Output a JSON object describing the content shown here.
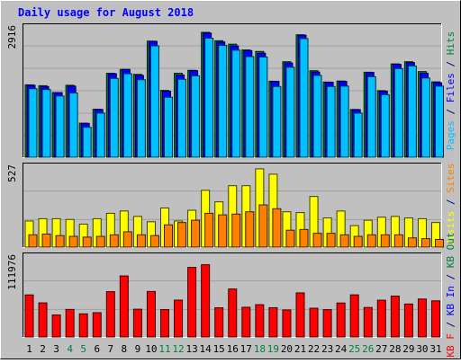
{
  "chart_data": [
    {
      "type": "bar",
      "title": "Daily usage for August 2018",
      "panel": "top",
      "y_max_label": "2916",
      "ylim": [
        0,
        2916
      ],
      "right_labels": [
        {
          "text": "Pages",
          "color": "#00c0ff"
        },
        {
          "text": " / ",
          "color": "#000080"
        },
        {
          "text": "Files",
          "color": "#0000ff"
        },
        {
          "text": " / ",
          "color": "#000080"
        },
        {
          "text": "Hits",
          "color": "#008040"
        }
      ],
      "categories": [
        "1",
        "2",
        "3",
        "4",
        "5",
        "6",
        "7",
        "8",
        "9",
        "10",
        "11",
        "12",
        "13",
        "14",
        "15",
        "16",
        "17",
        "18",
        "19",
        "20",
        "21",
        "22",
        "23",
        "24",
        "25",
        "26",
        "27",
        "28",
        "29",
        "30",
        "31"
      ],
      "series": [
        {
          "name": "Hits",
          "color": "#008040",
          "values": [
            1690,
            1670,
            1510,
            1680,
            795,
            1120,
            1960,
            2050,
            1935,
            2711,
            1560,
            1960,
            2030,
            2916,
            2720,
            2640,
            2505,
            2470,
            1775,
            2230,
            2860,
            2020,
            1755,
            1780,
            1116,
            1985,
            1555,
            2180,
            2230,
            2000,
            1760
          ]
        },
        {
          "name": "Files",
          "color": "#0000ff",
          "values": [
            1680,
            1650,
            1510,
            1660,
            790,
            1115,
            1950,
            2050,
            1910,
            2705,
            1540,
            1920,
            2020,
            2900,
            2690,
            2600,
            2490,
            2430,
            1770,
            2200,
            2850,
            1990,
            1750,
            1770,
            1110,
            1980,
            1540,
            2170,
            2210,
            1960,
            1740
          ]
        },
        {
          "name": "Pages",
          "color": "#00c0ff",
          "values": [
            1600,
            1580,
            1430,
            1500,
            700,
            1030,
            1840,
            1950,
            1810,
            2600,
            1400,
            1820,
            1900,
            2780,
            2610,
            2500,
            2350,
            2340,
            1650,
            2100,
            2770,
            1910,
            1650,
            1660,
            1030,
            1880,
            1460,
            2070,
            2130,
            1850,
            1660
          ]
        }
      ]
    },
    {
      "type": "bar",
      "panel": "middle",
      "y_max_label": "527",
      "ylim": [
        0,
        527
      ],
      "right_labels": [
        {
          "text": "Visits",
          "color": "#ffff00"
        },
        {
          "text": " / ",
          "color": "#000080"
        },
        {
          "text": "Sites",
          "color": "#ff8000"
        }
      ],
      "categories": [
        "1",
        "2",
        "3",
        "4",
        "5",
        "6",
        "7",
        "8",
        "9",
        "10",
        "11",
        "12",
        "13",
        "14",
        "15",
        "16",
        "17",
        "18",
        "19",
        "20",
        "21",
        "22",
        "23",
        "24",
        "25",
        "26",
        "27",
        "28",
        "29",
        "30",
        "31"
      ],
      "series": [
        {
          "name": "Visits",
          "color": "#ffff00",
          "values": [
            170,
            185,
            185,
            180,
            150,
            185,
            220,
            235,
            200,
            165,
            255,
            170,
            240,
            370,
            295,
            400,
            400,
            510,
            475,
            230,
            225,
            330,
            190,
            235,
            140,
            175,
            195,
            200,
            190,
            185,
            160
          ]
        },
        {
          "name": "Sites",
          "color": "#ff8000",
          "values": [
            80,
            85,
            75,
            70,
            65,
            70,
            80,
            100,
            80,
            75,
            145,
            160,
            175,
            220,
            210,
            215,
            230,
            275,
            250,
            110,
            115,
            90,
            90,
            80,
            70,
            80,
            80,
            80,
            60,
            55,
            50
          ]
        }
      ]
    },
    {
      "type": "bar",
      "panel": "bottom",
      "y_max_label": "111976",
      "ylim": [
        0,
        111976
      ],
      "right_labels": [
        {
          "text": "KB F",
          "color": "#ff0000"
        },
        {
          "text": " / ",
          "color": "#000080"
        },
        {
          "text": "KB In",
          "color": "#0000ff"
        },
        {
          "text": " / ",
          "color": "#000080"
        },
        {
          "text": "KB Out",
          "color": "#008040"
        }
      ],
      "x_labels": [
        {
          "text": "1",
          "color": "#000000"
        },
        {
          "text": "2",
          "color": "#000000"
        },
        {
          "text": "3",
          "color": "#000000"
        },
        {
          "text": "4",
          "color": "#008040"
        },
        {
          "text": "5",
          "color": "#008040"
        },
        {
          "text": "6",
          "color": "#000000"
        },
        {
          "text": "7",
          "color": "#000000"
        },
        {
          "text": "8",
          "color": "#000000"
        },
        {
          "text": "9",
          "color": "#000000"
        },
        {
          "text": "10",
          "color": "#000000"
        },
        {
          "text": "11",
          "color": "#008040"
        },
        {
          "text": "12",
          "color": "#008040"
        },
        {
          "text": "13",
          "color": "#000000"
        },
        {
          "text": "14",
          "color": "#000000"
        },
        {
          "text": "15",
          "color": "#000000"
        },
        {
          "text": "16",
          "color": "#000000"
        },
        {
          "text": "17",
          "color": "#000000"
        },
        {
          "text": "18",
          "color": "#008040"
        },
        {
          "text": "19",
          "color": "#008040"
        },
        {
          "text": "20",
          "color": "#000000"
        },
        {
          "text": "21",
          "color": "#000000"
        },
        {
          "text": "22",
          "color": "#000000"
        },
        {
          "text": "23",
          "color": "#000000"
        },
        {
          "text": "24",
          "color": "#000000"
        },
        {
          "text": "25",
          "color": "#008040"
        },
        {
          "text": "26",
          "color": "#008040"
        },
        {
          "text": "27",
          "color": "#000000"
        },
        {
          "text": "28",
          "color": "#000000"
        },
        {
          "text": "29",
          "color": "#000000"
        },
        {
          "text": "30",
          "color": "#000000"
        },
        {
          "text": "31",
          "color": "#000000"
        }
      ],
      "series": [
        {
          "name": "KB F",
          "color": "#ff0000",
          "values": [
            58200,
            47200,
            30400,
            38100,
            32000,
            33600,
            62700,
            84500,
            38400,
            63000,
            37900,
            51000,
            96300,
            100000,
            40400,
            66400,
            41100,
            44700,
            40500,
            37400,
            61000,
            39800,
            37800,
            47000,
            58300,
            40800,
            50900,
            56600,
            45600,
            52500,
            50000
          ]
        }
      ]
    }
  ]
}
